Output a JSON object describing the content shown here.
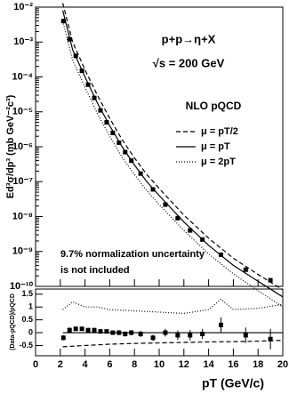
{
  "chart_data": [
    {
      "type": "scatter-line",
      "ylabel": "Ed³σ/dp³ (mb GeV⁻²c³)",
      "log_y": true,
      "annotations": [
        "p+p→η+X",
        "√s = 200 GeV",
        "NLO pQCD",
        "9.7% normalization uncertainty",
        "is not included"
      ],
      "xlim": [
        0,
        20
      ],
      "ylim": [
        1e-10,
        0.01
      ],
      "yticks": [
        {
          "value": 1e-10,
          "label": "10⁻¹⁰"
        },
        {
          "value": 1e-09,
          "label": "10⁻⁹"
        },
        {
          "value": 1e-08,
          "label": "10⁻⁸"
        },
        {
          "value": 1e-07,
          "label": "10⁻⁷"
        },
        {
          "value": 1e-06,
          "label": "10⁻⁶"
        },
        {
          "value": 1e-05,
          "label": "10⁻⁵"
        },
        {
          "value": 0.0001,
          "label": "10⁻⁴"
        },
        {
          "value": 0.001,
          "label": "10⁻³"
        },
        {
          "value": 0.01,
          "label": "10⁻²"
        }
      ],
      "x": [
        2.25,
        2.75,
        3.25,
        3.75,
        4.25,
        4.75,
        5.25,
        5.75,
        6.25,
        6.75,
        7.25,
        7.75,
        8.5,
        9.5,
        10.5,
        11.5,
        12.5,
        13.5,
        15,
        17,
        19
      ],
      "values": [
        0.004,
        0.0012,
        0.0004,
        0.00015,
        6e-05,
        2.5e-05,
        1.1e-05,
        5e-06,
        2.5e-06,
        1.3e-06,
        7e-07,
        4e-07,
        1.7e-07,
        6e-08,
        2.2e-08,
        9e-09,
        4e-09,
        2.2e-09,
        8e-10,
        3e-10,
        1.5e-10
      ],
      "series": [
        {
          "name": "μ = pT/2",
          "color": "#000000",
          "dash": "5,3",
          "x": [
            2.2,
            3,
            4,
            5,
            6,
            7,
            8,
            9,
            10,
            12,
            14,
            16,
            18,
            20
          ],
          "values": [
            0.013,
            0.001,
            0.00016,
            3e-05,
            6.5e-06,
            1.6e-06,
            4.8e-07,
            1.6e-07,
            6.4e-08,
            1.1e-08,
            2.4e-09,
            6.4e-10,
            2.2e-10,
            8e-11
          ]
        },
        {
          "name": "μ = pT",
          "color": "#000000",
          "dash": "",
          "x": [
            2.2,
            3,
            4,
            5,
            6,
            7,
            8,
            9,
            10,
            12,
            14,
            16,
            18,
            20
          ],
          "values": [
            0.008,
            0.0006,
            0.0001,
            1.8e-05,
            4e-06,
            1e-06,
            3e-07,
            1e-07,
            4e-08,
            7e-09,
            1.5e-09,
            4e-10,
            1.4e-10,
            5e-11
          ]
        },
        {
          "name": "μ = 2pT",
          "color": "#000000",
          "dash": "1,2",
          "x": [
            2.2,
            3,
            4,
            5,
            6,
            7,
            8,
            9,
            10,
            12,
            14,
            16,
            18,
            20
          ],
          "values": [
            0.004,
            0.0003,
            5e-05,
            9e-06,
            2e-06,
            5e-07,
            1.6e-07,
            5.5e-08,
            2.2e-08,
            4e-09,
            8.5e-10,
            2.3e-10,
            7.5e-11,
            2.6e-11
          ]
        }
      ]
    },
    {
      "type": "ratio",
      "xlabel": "pT (GeV/c)",
      "ylabel": "(Data-pQCD)/pQCD",
      "xlim": [
        0,
        20
      ],
      "ylim": [
        -0.9,
        1.7
      ],
      "xticks": [
        0,
        2,
        4,
        6,
        8,
        10,
        12,
        14,
        16,
        18,
        20
      ],
      "yticks": [
        -0.5,
        0,
        0.5,
        1,
        1.5
      ],
      "x": [
        2.25,
        2.75,
        3.25,
        3.75,
        4.25,
        4.75,
        5.25,
        5.75,
        6.25,
        6.75,
        7.25,
        7.75,
        8.5,
        9.5,
        10.5,
        11.5,
        12.5,
        13.5,
        15,
        17,
        19
      ],
      "values": [
        -0.2,
        0.1,
        0.15,
        0.15,
        0.1,
        0.1,
        0.05,
        0.05,
        0,
        0,
        -0.05,
        0,
        -0.05,
        -0.2,
        0,
        -0.1,
        -0.1,
        -0.05,
        0.3,
        -0.1,
        -0.25
      ],
      "errors": [
        0.1,
        0.1,
        0.08,
        0.08,
        0.08,
        0.08,
        0.08,
        0.08,
        0.08,
        0.1,
        0.1,
        0.1,
        0.12,
        0.12,
        0.15,
        0.18,
        0.2,
        0.2,
        0.3,
        0.3,
        0.4
      ],
      "series": [
        {
          "name": "μ = pT/2",
          "color": "#000000",
          "dash": "5,3",
          "x": [
            2.2,
            4,
            6,
            8,
            10,
            12,
            14,
            16,
            18,
            20
          ],
          "values": [
            -0.55,
            -0.5,
            -0.45,
            -0.42,
            -0.4,
            -0.38,
            -0.36,
            -0.35,
            -0.33,
            -0.3
          ]
        },
        {
          "name": "μ = pT",
          "color": "#000000",
          "dash": "",
          "x": [
            2.2,
            20
          ],
          "values": [
            0,
            0
          ]
        },
        {
          "name": "μ = 2pT",
          "color": "#000000",
          "dash": "1,2",
          "x": [
            2.2,
            3,
            4,
            5,
            6,
            8,
            10,
            12,
            14,
            15,
            16,
            18,
            20
          ],
          "values": [
            0.9,
            1.2,
            1.0,
            1.0,
            0.9,
            0.85,
            0.8,
            0.75,
            0.9,
            1.3,
            0.9,
            0.95,
            1.1
          ]
        }
      ]
    }
  ]
}
